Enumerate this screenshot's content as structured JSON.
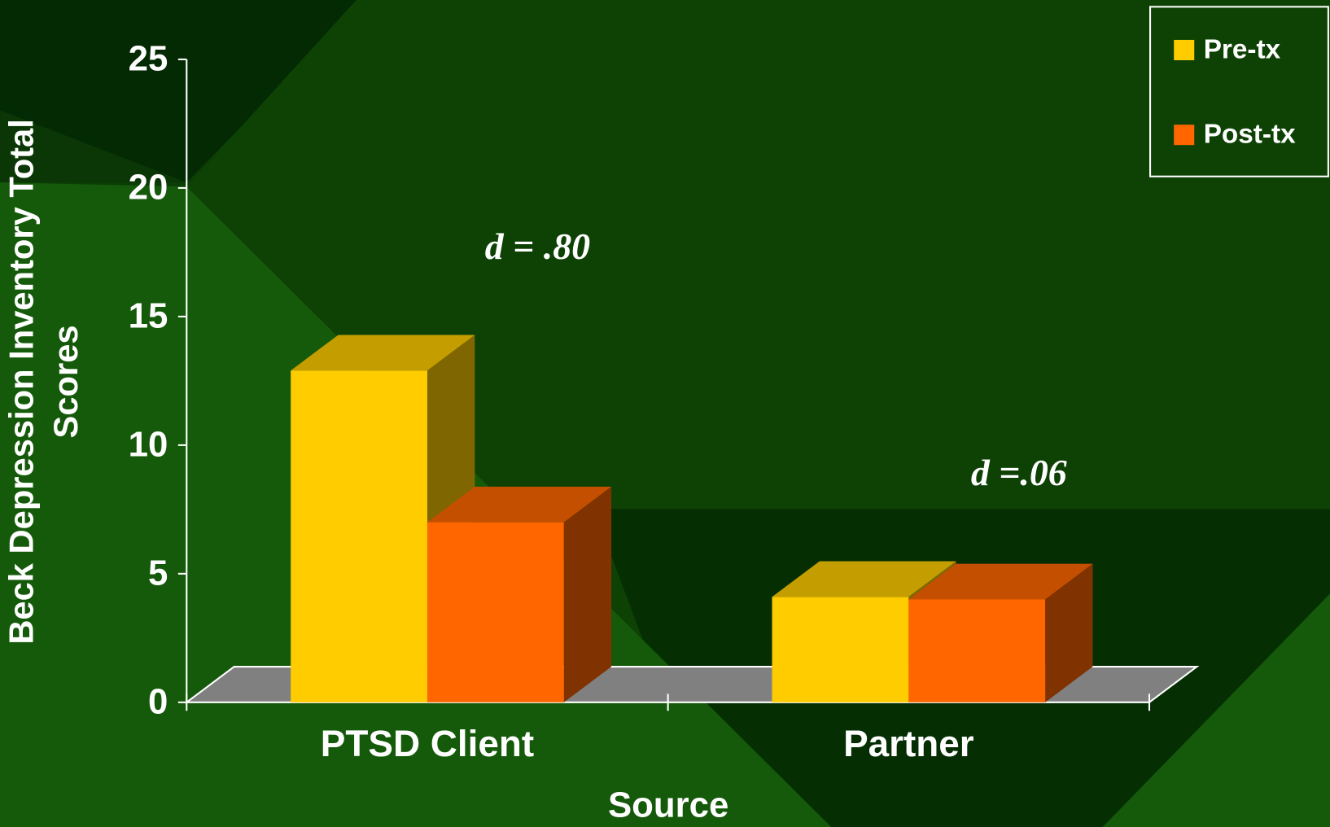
{
  "chart_data": {
    "type": "bar3d",
    "x_label": "Source",
    "y_label": "Beck Depression Inventory Total Scores",
    "categories": [
      "PTSD Client",
      "Partner"
    ],
    "series": [
      {
        "name": "Pre-tx",
        "color": "#ffcc00",
        "values": [
          12.9,
          4.1
        ]
      },
      {
        "name": "Post-tx",
        "color": "#ff6600",
        "values": [
          7.0,
          4.0
        ]
      }
    ],
    "annotations": [
      "d = .80",
      "d =.06"
    ],
    "ylim": [
      0,
      25
    ],
    "yticks": [
      0,
      5,
      10,
      15,
      20,
      25
    ],
    "legend": "top-right"
  }
}
